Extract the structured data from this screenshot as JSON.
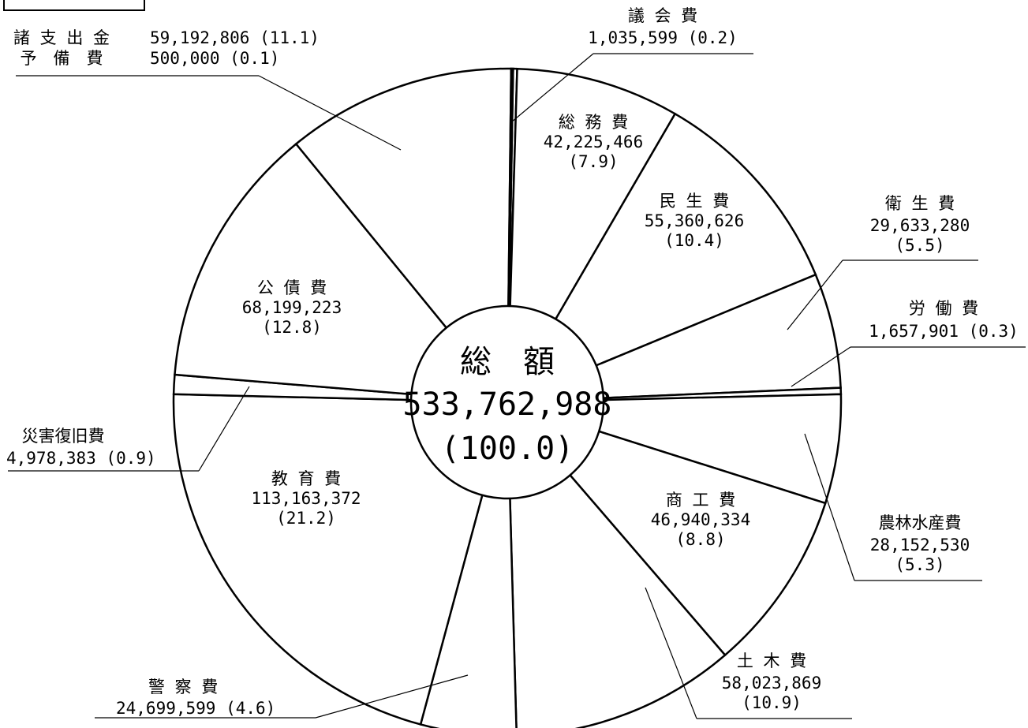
{
  "chart_data": {
    "type": "pie",
    "title": "",
    "total": {
      "name": "総　額",
      "value": "533,762,988",
      "percent": "(100.0)"
    },
    "slices": [
      {
        "name": "議会費",
        "name_display": "議 会 費",
        "value": 1035599,
        "value_text": "1,035,599",
        "percent": 0.2,
        "percent_text": "(0.2)"
      },
      {
        "name": "総務費",
        "name_display": "総 務 費",
        "value": 42225466,
        "value_text": "42,225,466",
        "percent": 7.9,
        "percent_text": "(7.9)"
      },
      {
        "name": "民生費",
        "name_display": "民 生 費",
        "value": 55360626,
        "value_text": "55,360,626",
        "percent": 10.4,
        "percent_text": "(10.4)"
      },
      {
        "name": "衛生費",
        "name_display": "衛 生 費",
        "value": 29633280,
        "value_text": "29,633,280",
        "percent": 5.5,
        "percent_text": "(5.5)"
      },
      {
        "name": "労働費",
        "name_display": "労 働 費",
        "value": 1657901,
        "value_text": "1,657,901",
        "percent": 0.3,
        "percent_text": "(0.3)"
      },
      {
        "name": "農林水産費",
        "name_display": "農林水産費",
        "value": 28152530,
        "value_text": "28,152,530",
        "percent": 5.3,
        "percent_text": "(5.3)"
      },
      {
        "name": "商工費",
        "name_display": "商 工 費",
        "value": 46940334,
        "value_text": "46,940,334",
        "percent": 8.8,
        "percent_text": "(8.8)"
      },
      {
        "name": "土木費",
        "name_display": "土 木 費",
        "value": 58023869,
        "value_text": "58,023,869",
        "percent": 10.9,
        "percent_text": "(10.9)"
      },
      {
        "name": "警察費",
        "name_display": "警 察 費",
        "value": 24699599,
        "value_text": "24,699,599",
        "percent": 4.6,
        "percent_text": "(4.6)"
      },
      {
        "name": "教育費",
        "name_display": "教 育 費",
        "value": 113163372,
        "value_text": "113,163,372",
        "percent": 21.2,
        "percent_text": "(21.2)"
      },
      {
        "name": "災害復旧費",
        "name_display": "災害復旧費",
        "value": 4978383,
        "value_text": "4,978,383",
        "percent": 0.9,
        "percent_text": "(0.9)"
      },
      {
        "name": "公債費",
        "name_display": "公 債 費",
        "value": 68199223,
        "value_text": "68,199,223",
        "percent": 12.8,
        "percent_text": "(12.8)"
      },
      {
        "name": "諸支出金",
        "name_display": "諸 支 出 金",
        "value": 59192806,
        "value_text": "59,192,806",
        "percent": 11.1,
        "percent_text": "(11.1)"
      },
      {
        "name": "予備費",
        "name_display": "予　備　費",
        "value": 500000,
        "value_text": "500,000",
        "percent": 0.1,
        "percent_text": "(0.1)"
      }
    ]
  }
}
